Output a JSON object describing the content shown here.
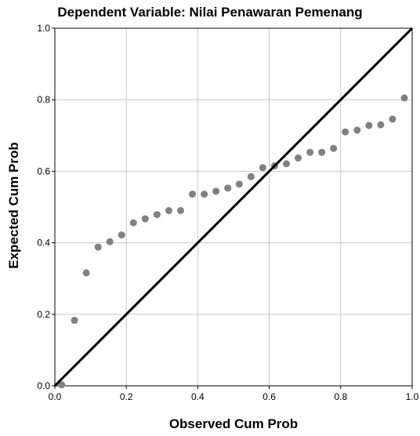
{
  "chart_data": {
    "type": "scatter",
    "title": "Dependent Variable: Nilai Penawaran Pemenang",
    "xlabel": "Observed Cum Prob",
    "ylabel": "Expected Cum Prob",
    "xlim": [
      0,
      1
    ],
    "ylim": [
      0,
      1
    ],
    "xticks": [
      "0.0",
      "0.2",
      "0.4",
      "0.6",
      "0.8",
      "1.0"
    ],
    "yticks": [
      "0.0",
      "0.2",
      "0.4",
      "0.6",
      "0.8",
      "1.0"
    ],
    "grid": true,
    "reference_line": [
      [
        0,
        0
      ],
      [
        1,
        1
      ]
    ],
    "point_color": "#808080",
    "line_color": "#000000",
    "points": [
      {
        "x": 0.019,
        "y": 0.003
      },
      {
        "x": 0.055,
        "y": 0.183
      },
      {
        "x": 0.088,
        "y": 0.316
      },
      {
        "x": 0.121,
        "y": 0.388
      },
      {
        "x": 0.154,
        "y": 0.403
      },
      {
        "x": 0.187,
        "y": 0.422
      },
      {
        "x": 0.22,
        "y": 0.456
      },
      {
        "x": 0.253,
        "y": 0.467
      },
      {
        "x": 0.286,
        "y": 0.479
      },
      {
        "x": 0.319,
        "y": 0.49
      },
      {
        "x": 0.352,
        "y": 0.49
      },
      {
        "x": 0.385,
        "y": 0.536
      },
      {
        "x": 0.418,
        "y": 0.536
      },
      {
        "x": 0.451,
        "y": 0.544
      },
      {
        "x": 0.484,
        "y": 0.553
      },
      {
        "x": 0.516,
        "y": 0.564
      },
      {
        "x": 0.549,
        "y": 0.585
      },
      {
        "x": 0.582,
        "y": 0.61
      },
      {
        "x": 0.615,
        "y": 0.615
      },
      {
        "x": 0.648,
        "y": 0.621
      },
      {
        "x": 0.681,
        "y": 0.637
      },
      {
        "x": 0.714,
        "y": 0.653
      },
      {
        "x": 0.747,
        "y": 0.653
      },
      {
        "x": 0.78,
        "y": 0.664
      },
      {
        "x": 0.813,
        "y": 0.71
      },
      {
        "x": 0.846,
        "y": 0.715
      },
      {
        "x": 0.879,
        "y": 0.728
      },
      {
        "x": 0.912,
        "y": 0.73
      },
      {
        "x": 0.945,
        "y": 0.746
      },
      {
        "x": 0.978,
        "y": 0.805
      }
    ]
  }
}
